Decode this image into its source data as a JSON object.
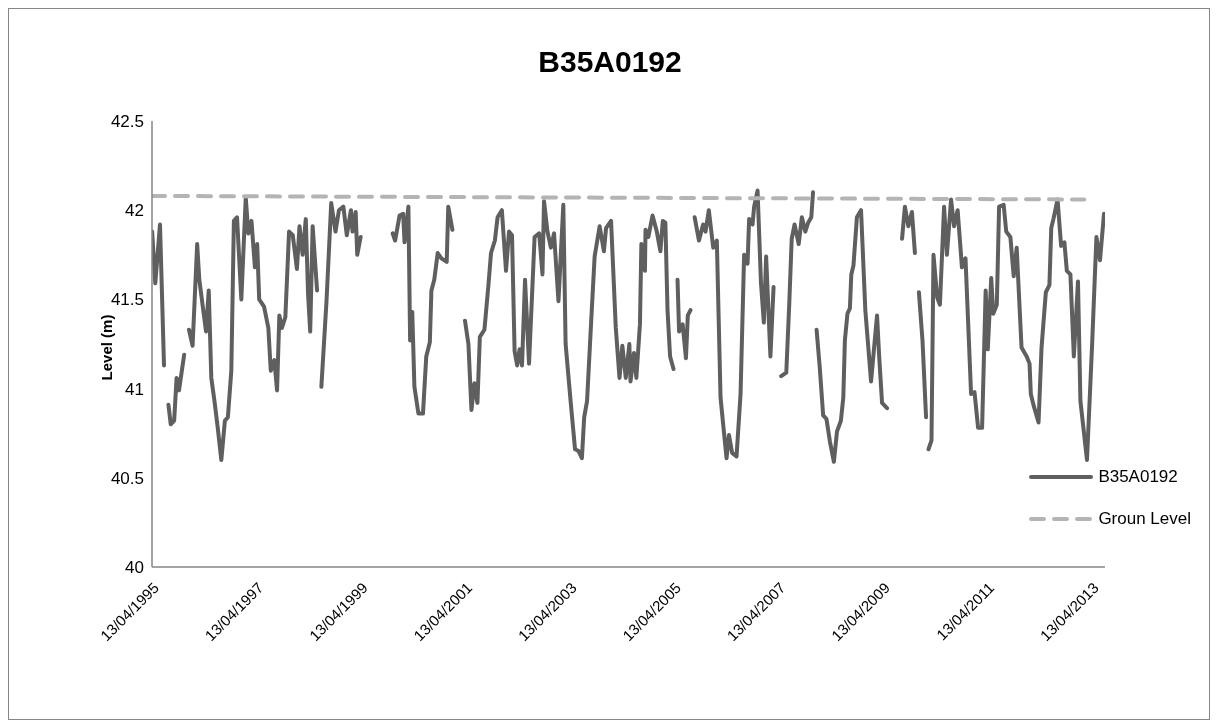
{
  "chart_data": {
    "type": "line",
    "title": "B35A0192",
    "ylabel": "Level (m)",
    "legend": "bottom right",
    "grid": false,
    "marker": "none",
    "xlim": [
      "1995-04-13",
      "2013-07-15"
    ],
    "xticks": [
      {
        "value": "1995-04-13",
        "label": "13/04/1995"
      },
      {
        "value": "1997-04-13",
        "label": "13/04/1997"
      },
      {
        "value": "1999-04-13",
        "label": "13/04/1999"
      },
      {
        "value": "2001-04-13",
        "label": "13/04/2001"
      },
      {
        "value": "2003-04-13",
        "label": "13/04/2003"
      },
      {
        "value": "2005-04-13",
        "label": "13/04/2005"
      },
      {
        "value": "2007-04-13",
        "label": "13/04/2007"
      },
      {
        "value": "2009-04-13",
        "label": "13/04/2009"
      },
      {
        "value": "2011-04-13",
        "label": "13/04/2011"
      },
      {
        "value": "2013-04-13",
        "label": "13/04/2013"
      }
    ],
    "ylim": [
      40,
      42.5
    ],
    "yticks": [
      40,
      40.5,
      41,
      41.5,
      42,
      42.5
    ],
    "series": [
      {
        "name": "B35A0192",
        "color": "#5f5f5f",
        "line_style": "solid",
        "x": [
          "1995-04-14",
          "1995-05-06",
          "1995-06-08",
          "1995-07-06",
          "1995-07-20",
          "1995-08-06",
          "1995-08-22",
          "1995-09-15",
          "1995-10-02",
          "1995-10-19",
          "1995-11-24",
          "1995-12-05",
          "1995-12-28",
          "1996-01-22",
          "1996-02-23",
          "1996-03-09",
          "1996-04-25",
          "1996-05-14",
          "1996-06-01",
          "1996-06-23",
          "1996-07-16",
          "1996-08-10",
          "1996-09-04",
          "1996-09-25",
          "1996-10-19",
          "1996-11-06",
          "1996-11-28",
          "1996-12-28",
          "1997-01-28",
          "1997-02-15",
          "1997-03-09",
          "1997-04-02",
          "1997-04-18",
          "1997-05-02",
          "1997-06-05",
          "1997-07-05",
          "1997-07-22",
          "1997-08-16",
          "1997-09-04",
          "1997-09-20",
          "1997-10-08",
          "1997-11-01",
          "1997-11-27",
          "1997-12-23",
          "1998-01-21",
          "1998-02-08",
          "1998-03-02",
          "1998-03-24",
          "1998-04-09",
          "1998-04-24",
          "1998-05-11",
          "1998-06-11",
          "1998-07-01",
          "1998-07-11",
          "1998-08-16",
          "1998-09-18",
          "1998-10-18",
          "1998-11-11",
          "1998-12-12",
          "1999-01-05",
          "1999-02-03",
          "1999-02-14",
          "1999-03-08",
          "1999-03-19",
          "1999-04-12",
          "1999-10-01",
          "1999-11-22",
          "1999-12-09",
          "2000-01-09",
          "2000-02-03",
          "2000-02-13",
          "2000-03-11",
          "2000-03-23",
          "2000-04-07",
          "2000-04-22",
          "2000-05-20",
          "2000-06-21",
          "2000-07-14",
          "2000-08-08",
          "2000-08-19",
          "2000-09-08",
          "2000-10-02",
          "2000-10-28",
          "2000-12-04",
          "2000-12-15",
          "2001-01-13",
          "2001-03-01",
          "2001-04-11",
          "2001-05-05",
          "2001-05-26",
          "2001-06-16",
          "2001-07-07",
          "2001-07-24",
          "2001-08-25",
          "2001-09-23",
          "2001-10-10",
          "2001-11-06",
          "2001-11-25",
          "2001-12-25",
          "2002-01-23",
          "2002-02-13",
          "2002-03-06",
          "2002-03-24",
          "2002-04-11",
          "2002-04-28",
          "2002-05-15",
          "2002-06-05",
          "2002-07-03",
          "2002-08-11",
          "2002-09-12",
          "2002-10-05",
          "2002-10-16",
          "2002-11-09",
          "2002-12-03",
          "2002-12-25",
          "2003-01-25",
          "2003-02-28",
          "2003-03-16",
          "2003-04-21",
          "2003-05-21",
          "2003-06-15",
          "2003-07-08",
          "2003-07-24",
          "2003-08-13",
          "2003-09-11",
          "2003-10-05",
          "2003-11-09",
          "2003-12-09",
          "2003-12-24",
          "2004-01-28",
          "2004-03-01",
          "2004-03-27",
          "2004-04-16",
          "2004-05-10",
          "2004-06-04",
          "2004-06-12",
          "2004-07-06",
          "2004-07-23",
          "2004-08-17",
          "2004-08-27",
          "2004-09-21",
          "2004-09-25",
          "2004-10-15",
          "2004-11-13",
          "2004-12-13",
          "2005-01-07",
          "2005-01-24",
          "2005-02-11",
          "2005-02-26",
          "2005-03-16",
          "2005-04-09",
          "2005-04-20",
          "2005-05-07",
          "2005-05-18",
          "2005-06-12",
          "2005-07-05",
          "2005-07-18",
          "2005-08-06",
          "2005-08-20",
          "2005-09-04",
          "2005-10-04",
          "2005-11-02",
          "2005-11-19",
          "2005-12-12",
          "2006-01-12",
          "2006-02-06",
          "2006-03-04",
          "2006-03-26",
          "2006-04-15",
          "2006-05-02",
          "2006-05-24",
          "2006-06-24",
          "2006-07-22",
          "2006-08-16",
          "2006-09-09",
          "2006-09-20",
          "2006-10-14",
          "2006-10-25",
          "2006-11-18",
          "2006-12-12",
          "2007-01-01",
          "2007-01-17",
          "2007-02-16",
          "2007-03-10",
          "2007-03-25",
          "2007-05-02",
          "2007-06-07",
          "2007-06-28",
          "2007-07-15",
          "2007-08-04",
          "2007-09-02",
          "2007-09-24",
          "2007-10-18",
          "2007-11-07",
          "2007-11-29",
          "2007-12-11",
          "2007-12-25",
          "2008-01-05",
          "2008-01-27",
          "2008-02-20",
          "2008-03-14",
          "2008-04-08",
          "2008-05-05",
          "2008-05-27",
          "2008-06-23",
          "2008-07-10",
          "2008-07-21",
          "2008-08-08",
          "2008-08-25",
          "2008-09-04",
          "2008-09-19",
          "2008-10-13",
          "2008-11-11",
          "2008-12-11",
          "2009-01-20",
          "2009-03-03",
          "2009-03-18",
          "2009-04-07",
          "2009-05-12",
          "2009-08-01",
          "2009-08-25",
          "2009-09-14",
          "2009-10-08",
          "2009-11-02",
          "2009-11-23",
          "2009-12-15",
          "2009-12-21",
          "2010-01-15",
          "2010-02-09",
          "2010-02-20",
          "2010-02-26",
          "2010-03-19",
          "2010-04-02",
          "2010-04-28",
          "2010-05-17",
          "2010-06-15",
          "2010-07-05",
          "2010-08-03",
          "2010-08-24",
          "2010-09-18",
          "2010-10-18",
          "2010-11-12",
          "2010-12-21",
          "2011-01-14",
          "2011-02-08",
          "2011-03-08",
          "2011-04-02",
          "2011-04-17",
          "2011-05-11",
          "2011-05-25",
          "2011-06-19",
          "2011-07-05",
          "2011-08-06",
          "2011-08-24",
          "2011-09-22",
          "2011-10-15",
          "2011-11-05",
          "2011-12-09",
          "2012-01-14",
          "2012-02-03",
          "2012-02-12",
          "2012-03-01",
          "2012-04-06",
          "2012-04-27",
          "2012-05-27",
          "2012-06-21",
          "2012-07-04",
          "2012-07-19",
          "2012-08-17",
          "2012-09-11",
          "2012-10-04",
          "2012-10-21",
          "2012-11-15",
          "2012-12-09",
          "2013-01-07",
          "2013-01-24",
          "2013-03-11",
          "2013-04-16",
          "2013-05-16",
          "2013-06-10",
          "2013-07-08"
        ],
        "values": [
          41.88,
          41.59,
          41.92,
          41.13,
          null,
          40.91,
          40.8,
          40.82,
          41.06,
          40.99,
          41.19,
          null,
          41.33,
          41.24,
          41.81,
          41.61,
          41.32,
          41.55,
          41.06,
          40.93,
          40.78,
          40.6,
          40.82,
          40.84,
          41.1,
          41.94,
          41.96,
          41.5,
          42.07,
          41.87,
          41.94,
          41.68,
          41.81,
          41.5,
          41.46,
          41.34,
          41.1,
          41.16,
          40.99,
          41.41,
          41.34,
          41.4,
          41.88,
          41.86,
          41.67,
          41.91,
          41.75,
          41.95,
          41.53,
          41.32,
          41.91,
          41.55,
          null,
          41.01,
          41.49,
          42.04,
          41.88,
          42.0,
          42.02,
          41.86,
          42.0,
          41.88,
          41.99,
          41.75,
          41.85,
          null,
          41.87,
          41.83,
          41.97,
          41.98,
          41.82,
          42.02,
          41.27,
          41.43,
          41.01,
          40.86,
          40.86,
          41.18,
          41.26,
          41.55,
          41.61,
          41.76,
          41.73,
          41.71,
          42.02,
          41.89,
          null,
          41.38,
          41.25,
          40.88,
          41.03,
          40.92,
          41.29,
          41.33,
          41.59,
          41.76,
          41.83,
          41.96,
          42.0,
          41.66,
          41.88,
          41.86,
          41.21,
          41.13,
          41.22,
          41.13,
          41.61,
          41.14,
          41.85,
          41.87,
          41.64,
          42.05,
          41.88,
          41.79,
          41.87,
          41.49,
          42.03,
          41.25,
          40.92,
          40.66,
          40.65,
          40.61,
          40.84,
          40.93,
          41.38,
          41.74,
          41.91,
          41.77,
          41.9,
          41.94,
          41.34,
          41.06,
          41.24,
          41.06,
          41.25,
          41.04,
          41.2,
          41.06,
          41.36,
          41.81,
          41.66,
          41.89,
          41.85,
          41.97,
          41.88,
          41.77,
          41.94,
          41.93,
          41.44,
          41.18,
          41.11,
          null,
          41.61,
          41.32,
          41.36,
          41.17,
          41.41,
          41.44,
          null,
          41.96,
          41.83,
          41.92,
          41.88,
          42.0,
          41.79,
          41.83,
          40.95,
          40.77,
          40.61,
          40.74,
          40.64,
          40.62,
          40.97,
          41.75,
          41.7,
          41.95,
          41.92,
          42.02,
          42.11,
          41.59,
          41.37,
          41.74,
          41.18,
          41.57,
          null,
          41.07,
          41.09,
          41.48,
          41.84,
          41.92,
          41.81,
          41.96,
          41.88,
          41.93,
          41.96,
          42.1,
          null,
          41.33,
          41.12,
          40.85,
          40.83,
          40.7,
          40.59,
          40.76,
          40.82,
          40.95,
          41.27,
          41.42,
          41.45,
          41.64,
          41.69,
          41.96,
          42.0,
          41.44,
          41.04,
          41.41,
          41.18,
          40.92,
          40.89,
          null,
          41.84,
          42.02,
          41.91,
          41.99,
          41.76,
          null,
          41.54,
          41.27,
          40.84,
          null,
          40.66,
          40.71,
          41.75,
          41.51,
          41.47,
          42.02,
          41.75,
          42.06,
          41.91,
          42.0,
          41.68,
          41.73,
          40.97,
          40.98,
          40.78,
          40.78,
          41.55,
          41.22,
          41.62,
          41.42,
          41.47,
          42.02,
          42.03,
          41.88,
          41.85,
          41.63,
          41.79,
          41.23,
          41.18,
          41.14,
          40.97,
          40.91,
          40.81,
          41.23,
          41.54,
          41.58,
          41.9,
          41.95,
          42.06,
          41.8,
          41.82,
          41.66,
          41.64,
          41.18,
          41.6,
          40.93,
          40.6,
          41.25,
          41.85,
          41.72,
          41.98
        ]
      },
      {
        "name": "Groun Level",
        "color": "#b4b4b4",
        "line_style": "dashed",
        "x": [
          "1995-04-13",
          "2013-02-20"
        ],
        "values": [
          42.08,
          42.06
        ]
      }
    ]
  }
}
